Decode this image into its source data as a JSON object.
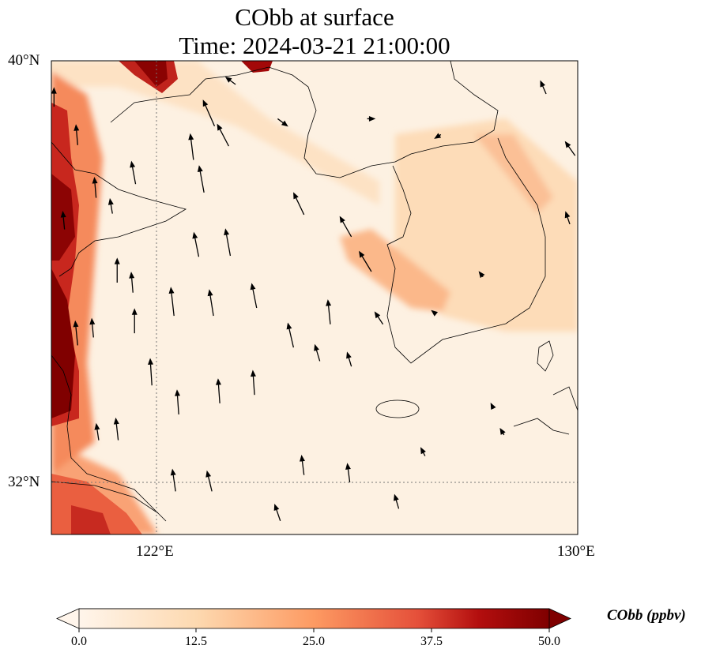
{
  "chart_data": {
    "type": "map",
    "title": "CObb at surface",
    "subtitle": "Time: 2024-03-21 21:00:00",
    "extent": {
      "lon": [
        120,
        130
      ],
      "lat": [
        31,
        40
      ]
    },
    "lat_ticks": [
      {
        "value": 40,
        "label": "40°N"
      },
      {
        "value": 32,
        "label": "32°N"
      }
    ],
    "lon_ticks": [
      {
        "value": 122,
        "label": "122°E"
      },
      {
        "value": 130,
        "label": "130°E"
      }
    ],
    "gridlines": {
      "lon": [
        122
      ],
      "lat": [
        32
      ],
      "style": "dotted"
    },
    "colorbar": {
      "label": "CObb (ppbv)",
      "range": [
        0,
        50
      ],
      "ticks": [
        "0.0",
        "12.5",
        "25.0",
        "37.5",
        "50.0"
      ],
      "extend": "both",
      "colormap": [
        "#fff5eb",
        "#fdd9b0",
        "#fda06a",
        "#e8523a",
        "#b30e0e",
        "#7f0000"
      ]
    },
    "wind_vectors": [
      [
        121.25,
        35.79,
        0,
        10
      ],
      [
        121.58,
        34.83,
        0,
        10
      ],
      [
        121.91,
        33.84,
        -0.7,
        11
      ],
      [
        122.42,
        33.29,
        -0.7,
        10
      ],
      [
        123.2,
        33.5,
        -0.7,
        10
      ],
      [
        123.86,
        33.66,
        -0.7,
        10
      ],
      [
        123.08,
        35.16,
        -1.7,
        10.7
      ],
      [
        123.9,
        35.31,
        -2,
        10
      ],
      [
        124.6,
        34.56,
        -2.3,
        10
      ],
      [
        125.3,
        35.0,
        -1,
        10
      ],
      [
        122.33,
        35.16,
        -1.3,
        11.7
      ],
      [
        122.8,
        36.28,
        -2,
        10
      ],
      [
        123.4,
        36.3,
        -2,
        11
      ],
      [
        122.9,
        37.5,
        -2,
        11
      ],
      [
        121.6,
        37.66,
        -1.7,
        9.3
      ],
      [
        122.7,
        38.12,
        -1.3,
        10.7
      ],
      [
        123.37,
        38.38,
        -4.7,
        9
      ],
      [
        123.1,
        38.76,
        -4.7,
        10.7
      ],
      [
        124.8,
        37.08,
        -4.3,
        9
      ],
      [
        125.7,
        36.66,
        -4.7,
        8.3
      ],
      [
        126.08,
        36.0,
        -5,
        8.3
      ],
      [
        124.8,
        32.14,
        -1,
        8
      ],
      [
        125.67,
        32.0,
        -1,
        7.7
      ],
      [
        122.36,
        31.83,
        -1.3,
        9
      ],
      [
        123.05,
        31.83,
        -2,
        8.3
      ],
      [
        124.35,
        31.27,
        -2.3,
        6.7
      ],
      [
        126.6,
        31.5,
        -1.7,
        5.7
      ],
      [
        127.1,
        32.5,
        -1.7,
        3.3
      ],
      [
        125.1,
        34.3,
        -2,
        6.7
      ],
      [
        125.7,
        34.2,
        -1.7,
        5.7
      ],
      [
        126.3,
        35.0,
        -3.3,
        5
      ],
      [
        120.5,
        34.6,
        -1,
        10
      ],
      [
        120.8,
        34.75,
        -0.7,
        7.7
      ],
      [
        120.9,
        32.8,
        -1,
        6.7
      ],
      [
        121.27,
        32.8,
        -1,
        9
      ],
      [
        120.25,
        36.8,
        -0.7,
        7.3
      ],
      [
        120.85,
        37.4,
        -0.7,
        8.3
      ],
      [
        120.5,
        38.4,
        -0.7,
        8.3
      ],
      [
        121.16,
        37.1,
        -1,
        6
      ],
      [
        121.55,
        35.6,
        -0.7,
        8.3
      ],
      [
        120.05,
        39.13,
        0,
        7.7
      ],
      [
        129.4,
        39.37,
        -2.3,
        5.3
      ],
      [
        129.85,
        36.9,
        -1.7,
        5
      ],
      [
        129.95,
        38.2,
        -4,
        5.7
      ],
      [
        124.3,
        38.9,
        4,
        -3
      ],
      [
        123.5,
        39.55,
        -4,
        3
      ],
      [
        126.0,
        38.9,
        3,
        0
      ],
      [
        127.4,
        38.6,
        -2.4,
        -1.5
      ],
      [
        128.2,
        35.9,
        -1.5,
        2
      ],
      [
        127.3,
        35.2,
        -1.5,
        1.2
      ],
      [
        128.4,
        33.4,
        -1,
        2
      ],
      [
        128.6,
        32.9,
        -1.5,
        2.5
      ]
    ]
  }
}
